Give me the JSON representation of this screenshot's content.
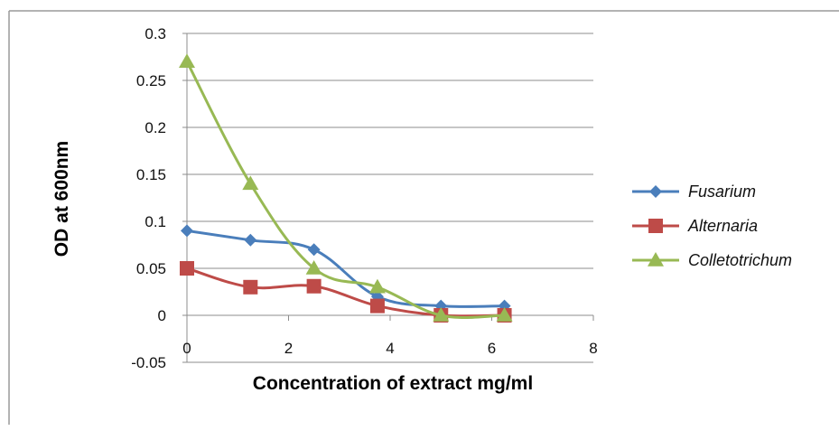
{
  "chart_data": {
    "type": "line",
    "xlabel": "Concentration of extract mg/ml",
    "ylabel": "OD  at 600nm",
    "xlim": [
      0,
      8
    ],
    "ylim": [
      -0.05,
      0.3
    ],
    "x_ticks": [
      0,
      2,
      4,
      6,
      8
    ],
    "y_ticks": [
      -0.05,
      0,
      0.05,
      0.1,
      0.15,
      0.2,
      0.25,
      0.3
    ],
    "x_tick_labels": [
      "0",
      "2",
      "4",
      "6",
      "8"
    ],
    "y_tick_labels": [
      "-0.05",
      "0",
      "0.05",
      "0.1",
      "0.15",
      "0.2",
      "0.25",
      "0.3"
    ],
    "grid": "horizontal",
    "legend_position": "right",
    "smooth": true,
    "series": [
      {
        "name": "Fusarium",
        "color": "#4a7ebb",
        "marker": "diamond",
        "x": [
          0,
          1.25,
          2.5,
          3.75,
          5,
          6.25
        ],
        "y": [
          0.09,
          0.08,
          0.07,
          0.02,
          0.01,
          0.01
        ]
      },
      {
        "name": "Alternaria",
        "color": "#be4b48",
        "marker": "square",
        "x": [
          0,
          1.25,
          2.5,
          3.75,
          5,
          6.25
        ],
        "y": [
          0.05,
          0.03,
          0.031,
          0.01,
          0,
          0
        ]
      },
      {
        "name": "Colletotrichum",
        "color": "#98b954",
        "marker": "triangle",
        "x": [
          0,
          1.25,
          2.5,
          3.75,
          5,
          6.25
        ],
        "y": [
          0.27,
          0.14,
          0.05,
          0.03,
          0,
          0
        ]
      }
    ]
  }
}
